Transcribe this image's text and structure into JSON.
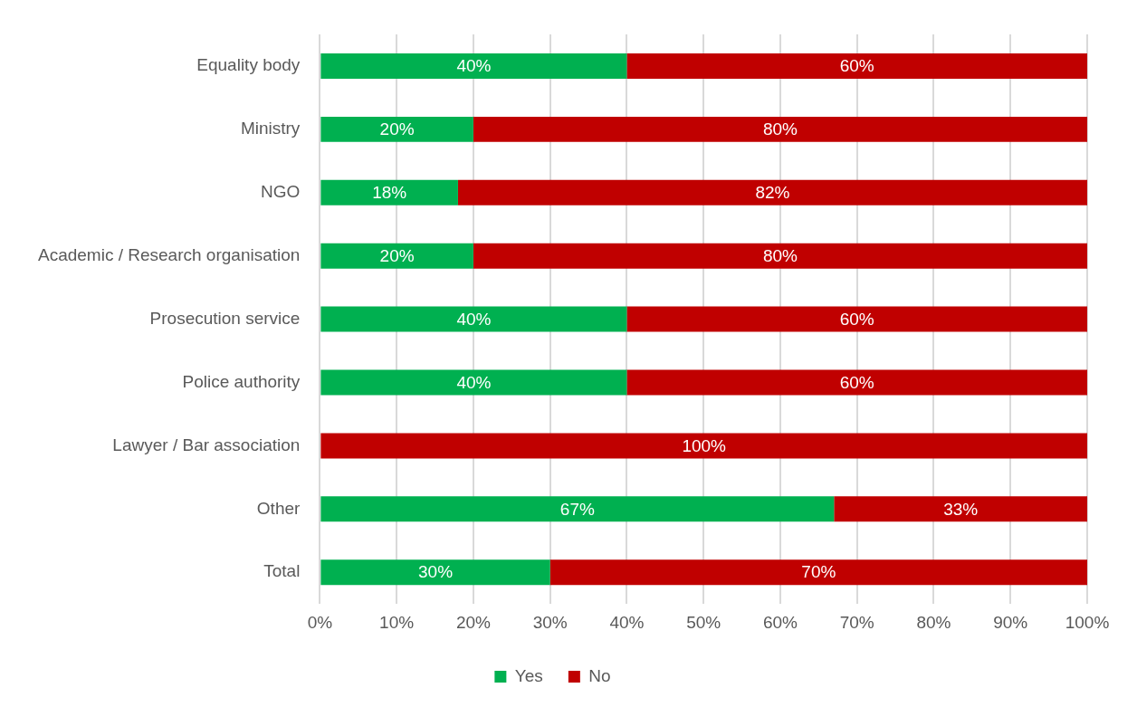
{
  "chart_data": {
    "type": "bar",
    "orientation": "horizontal",
    "stacked": true,
    "categories": [
      "Equality body",
      "Ministry",
      "NGO",
      "Academic / Research organisation",
      "Prosecution service",
      "Police authority",
      "Lawyer / Bar association",
      "Other",
      "Total"
    ],
    "series": [
      {
        "name": "Yes",
        "color": "#00b050",
        "values": [
          40,
          20,
          18,
          20,
          40,
          40,
          0,
          67,
          30
        ],
        "value_labels": [
          "40%",
          "20%",
          "18%",
          "20%",
          "40%",
          "40%",
          null,
          "67%",
          "30%"
        ]
      },
      {
        "name": "No",
        "color": "#c00000",
        "values": [
          60,
          80,
          82,
          80,
          60,
          60,
          100,
          33,
          70
        ],
        "value_labels": [
          "60%",
          "80%",
          "82%",
          "80%",
          "60%",
          "60%",
          "100%",
          "33%",
          "70%"
        ]
      }
    ],
    "xlim": [
      0,
      100
    ],
    "xticks": [
      {
        "value": 0,
        "label": "0%"
      },
      {
        "value": 10,
        "label": "10%"
      },
      {
        "value": 20,
        "label": "20%"
      },
      {
        "value": 30,
        "label": "30%"
      },
      {
        "value": 40,
        "label": "40%"
      },
      {
        "value": 50,
        "label": "50%"
      },
      {
        "value": 60,
        "label": "60%"
      },
      {
        "value": 70,
        "label": "70%"
      },
      {
        "value": 80,
        "label": "80%"
      },
      {
        "value": 90,
        "label": "90%"
      },
      {
        "value": 100,
        "label": "100%"
      }
    ],
    "grid": "x",
    "legend": "bottom"
  }
}
